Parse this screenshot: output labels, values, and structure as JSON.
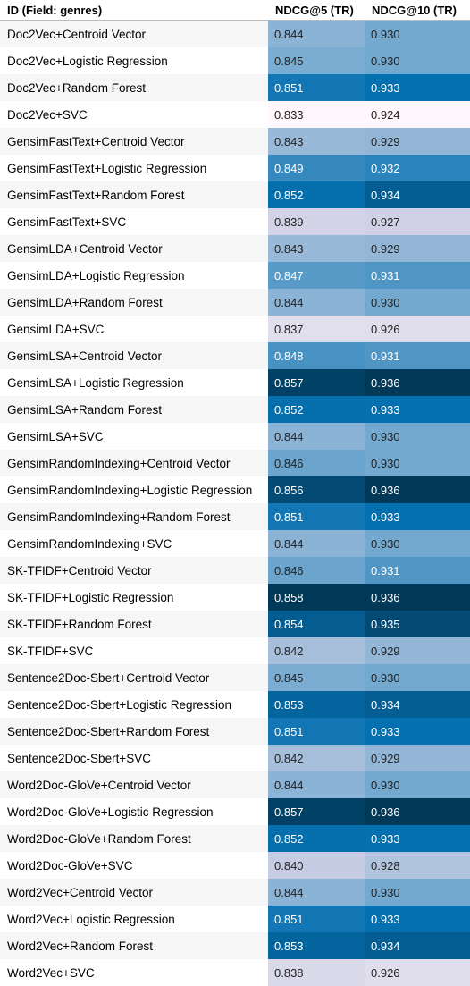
{
  "chart_data": {
    "type": "table",
    "columns": [
      "ID (Field: genres)",
      "NDCG@5 (TR)",
      "NDCG@10 (TR)"
    ],
    "rows": [
      {
        "id": "Doc2Vec+Centroid Vector",
        "ndcg5": 0.844,
        "ndcg10": 0.93
      },
      {
        "id": "Doc2Vec+Logistic Regression",
        "ndcg5": 0.845,
        "ndcg10": 0.93
      },
      {
        "id": "Doc2Vec+Random Forest",
        "ndcg5": 0.851,
        "ndcg10": 0.933
      },
      {
        "id": "Doc2Vec+SVC",
        "ndcg5": 0.833,
        "ndcg10": 0.924
      },
      {
        "id": "GensimFastText+Centroid Vector",
        "ndcg5": 0.843,
        "ndcg10": 0.929
      },
      {
        "id": "GensimFastText+Logistic Regression",
        "ndcg5": 0.849,
        "ndcg10": 0.932
      },
      {
        "id": "GensimFastText+Random Forest",
        "ndcg5": 0.852,
        "ndcg10": 0.934
      },
      {
        "id": "GensimFastText+SVC",
        "ndcg5": 0.839,
        "ndcg10": 0.927
      },
      {
        "id": "GensimLDA+Centroid Vector",
        "ndcg5": 0.843,
        "ndcg10": 0.929
      },
      {
        "id": "GensimLDA+Logistic Regression",
        "ndcg5": 0.847,
        "ndcg10": 0.931
      },
      {
        "id": "GensimLDA+Random Forest",
        "ndcg5": 0.844,
        "ndcg10": 0.93
      },
      {
        "id": "GensimLDA+SVC",
        "ndcg5": 0.837,
        "ndcg10": 0.926
      },
      {
        "id": "GensimLSA+Centroid Vector",
        "ndcg5": 0.848,
        "ndcg10": 0.931
      },
      {
        "id": "GensimLSA+Logistic Regression",
        "ndcg5": 0.857,
        "ndcg10": 0.936
      },
      {
        "id": "GensimLSA+Random Forest",
        "ndcg5": 0.852,
        "ndcg10": 0.933
      },
      {
        "id": "GensimLSA+SVC",
        "ndcg5": 0.844,
        "ndcg10": 0.93
      },
      {
        "id": "GensimRandomIndexing+Centroid Vector",
        "ndcg5": 0.846,
        "ndcg10": 0.93
      },
      {
        "id": "GensimRandomIndexing+Logistic Regression",
        "ndcg5": 0.856,
        "ndcg10": 0.936
      },
      {
        "id": "GensimRandomIndexing+Random Forest",
        "ndcg5": 0.851,
        "ndcg10": 0.933
      },
      {
        "id": "GensimRandomIndexing+SVC",
        "ndcg5": 0.844,
        "ndcg10": 0.93
      },
      {
        "id": "SK-TFIDF+Centroid Vector",
        "ndcg5": 0.846,
        "ndcg10": 0.931
      },
      {
        "id": "SK-TFIDF+Logistic Regression",
        "ndcg5": 0.858,
        "ndcg10": 0.936
      },
      {
        "id": "SK-TFIDF+Random Forest",
        "ndcg5": 0.854,
        "ndcg10": 0.935
      },
      {
        "id": "SK-TFIDF+SVC",
        "ndcg5": 0.842,
        "ndcg10": 0.929
      },
      {
        "id": "Sentence2Doc-Sbert+Centroid Vector",
        "ndcg5": 0.845,
        "ndcg10": 0.93
      },
      {
        "id": "Sentence2Doc-Sbert+Logistic Regression",
        "ndcg5": 0.853,
        "ndcg10": 0.934
      },
      {
        "id": "Sentence2Doc-Sbert+Random Forest",
        "ndcg5": 0.851,
        "ndcg10": 0.933
      },
      {
        "id": "Sentence2Doc-Sbert+SVC",
        "ndcg5": 0.842,
        "ndcg10": 0.929
      },
      {
        "id": "Word2Doc-GloVe+Centroid Vector",
        "ndcg5": 0.844,
        "ndcg10": 0.93
      },
      {
        "id": "Word2Doc-GloVe+Logistic Regression",
        "ndcg5": 0.857,
        "ndcg10": 0.936
      },
      {
        "id": "Word2Doc-GloVe+Random Forest",
        "ndcg5": 0.852,
        "ndcg10": 0.933
      },
      {
        "id": "Word2Doc-GloVe+SVC",
        "ndcg5": 0.84,
        "ndcg10": 0.928
      },
      {
        "id": "Word2Vec+Centroid Vector",
        "ndcg5": 0.844,
        "ndcg10": 0.93
      },
      {
        "id": "Word2Vec+Logistic Regression",
        "ndcg5": 0.851,
        "ndcg10": 0.933
      },
      {
        "id": "Word2Vec+Random Forest",
        "ndcg5": 0.853,
        "ndcg10": 0.934
      },
      {
        "id": "Word2Vec+SVC",
        "ndcg5": 0.838,
        "ndcg10": 0.926
      }
    ],
    "color_scale": {
      "low": "#fff7fb",
      "mid1": "#d0d1e6",
      "mid2": "#74a9cf",
      "mid3": "#0570b0",
      "high": "#023858"
    }
  }
}
